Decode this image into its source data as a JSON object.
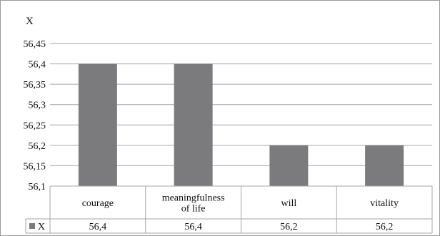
{
  "chart_data": {
    "type": "bar",
    "title": "X",
    "categories": [
      "courage",
      "meaningfulness of life",
      "will",
      "vitality"
    ],
    "category_lines": [
      [
        "courage"
      ],
      [
        "meaningfulness",
        "of life"
      ],
      [
        "will"
      ],
      [
        "vitality"
      ]
    ],
    "series": [
      {
        "name": "X",
        "values": [
          56.4,
          56.4,
          56.2,
          56.2
        ],
        "value_labels": [
          "56,4",
          "56,4",
          "56,2",
          "56,2"
        ],
        "color": "#7b7b7e"
      }
    ],
    "ylim": [
      56.1,
      56.45
    ],
    "yticks": [
      56.1,
      56.15,
      56.2,
      56.25,
      56.3,
      56.35,
      56.4,
      56.45
    ],
    "ytick_labels": [
      "56,1",
      "56,15",
      "56,2",
      "56,25",
      "56,3",
      "56,35",
      "56,4",
      "56,45"
    ],
    "grid": true,
    "legend": "data-table-left",
    "data_table": true
  }
}
